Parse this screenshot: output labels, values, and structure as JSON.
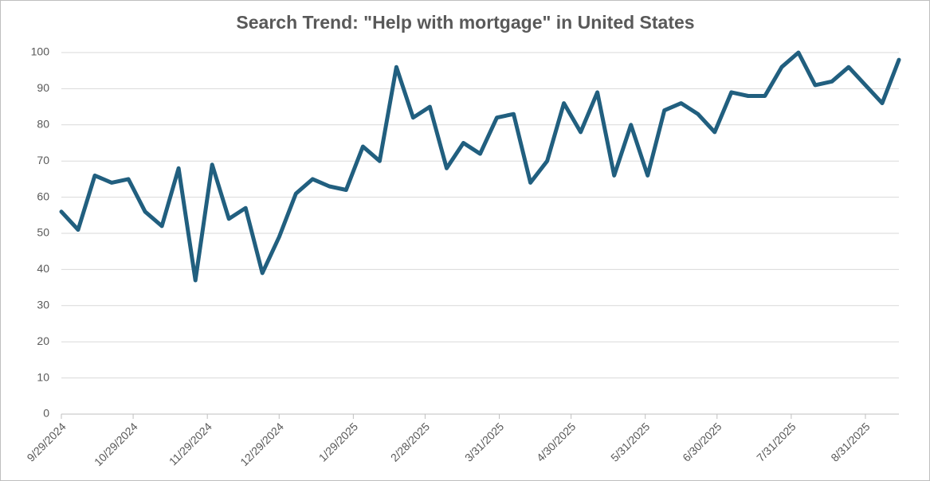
{
  "chart_data": {
    "type": "line",
    "title": "Search Trend: \"Help with mortgage\" in United States",
    "x": [
      "9/29/2024",
      "10/6/2024",
      "10/13/2024",
      "10/20/2024",
      "10/27/2024",
      "11/3/2024",
      "11/10/2024",
      "11/17/2024",
      "11/24/2024",
      "12/1/2024",
      "12/8/2024",
      "12/15/2024",
      "12/22/2024",
      "12/29/2024",
      "1/5/2025",
      "1/12/2025",
      "1/19/2025",
      "1/26/2025",
      "2/2/2025",
      "2/9/2025",
      "2/16/2025",
      "2/23/2025",
      "3/2/2025",
      "3/9/2025",
      "3/16/2025",
      "3/23/2025",
      "3/30/2025",
      "4/6/2025",
      "4/13/2025",
      "4/20/2025",
      "4/27/2025",
      "5/4/2025",
      "5/11/2025",
      "5/18/2025",
      "5/25/2025",
      "6/1/2025",
      "6/8/2025",
      "6/15/2025",
      "6/22/2025",
      "6/29/2025",
      "7/6/2025",
      "7/13/2025",
      "7/20/2025",
      "7/27/2025",
      "8/3/2025",
      "8/10/2025",
      "8/17/2025",
      "8/24/2025",
      "8/31/2025",
      "9/7/2025",
      "9/14/2025"
    ],
    "values": [
      56,
      51,
      66,
      64,
      65,
      56,
      52,
      68,
      37,
      69,
      54,
      57,
      39,
      49,
      61,
      65,
      63,
      62,
      74,
      70,
      96,
      82,
      85,
      68,
      75,
      72,
      82,
      83,
      64,
      70,
      86,
      78,
      89,
      66,
      80,
      66,
      84,
      86,
      83,
      78,
      89,
      88,
      88,
      96,
      100,
      91,
      92,
      96,
      91,
      86,
      98
    ],
    "color": "#215f7f",
    "xlim": [
      "9/29/2024",
      "9/14/2025"
    ],
    "xticks": [
      "9/29/2024",
      "10/29/2024",
      "11/29/2024",
      "12/29/2024",
      "1/29/2025",
      "2/28/2025",
      "3/31/2025",
      "4/30/2025",
      "5/31/2025",
      "6/30/2025",
      "7/31/2025",
      "8/31/2025"
    ],
    "ylim": [
      0,
      100
    ],
    "yticks": [
      0,
      10,
      20,
      30,
      40,
      50,
      60,
      70,
      80,
      90,
      100
    ],
    "grid": true
  }
}
